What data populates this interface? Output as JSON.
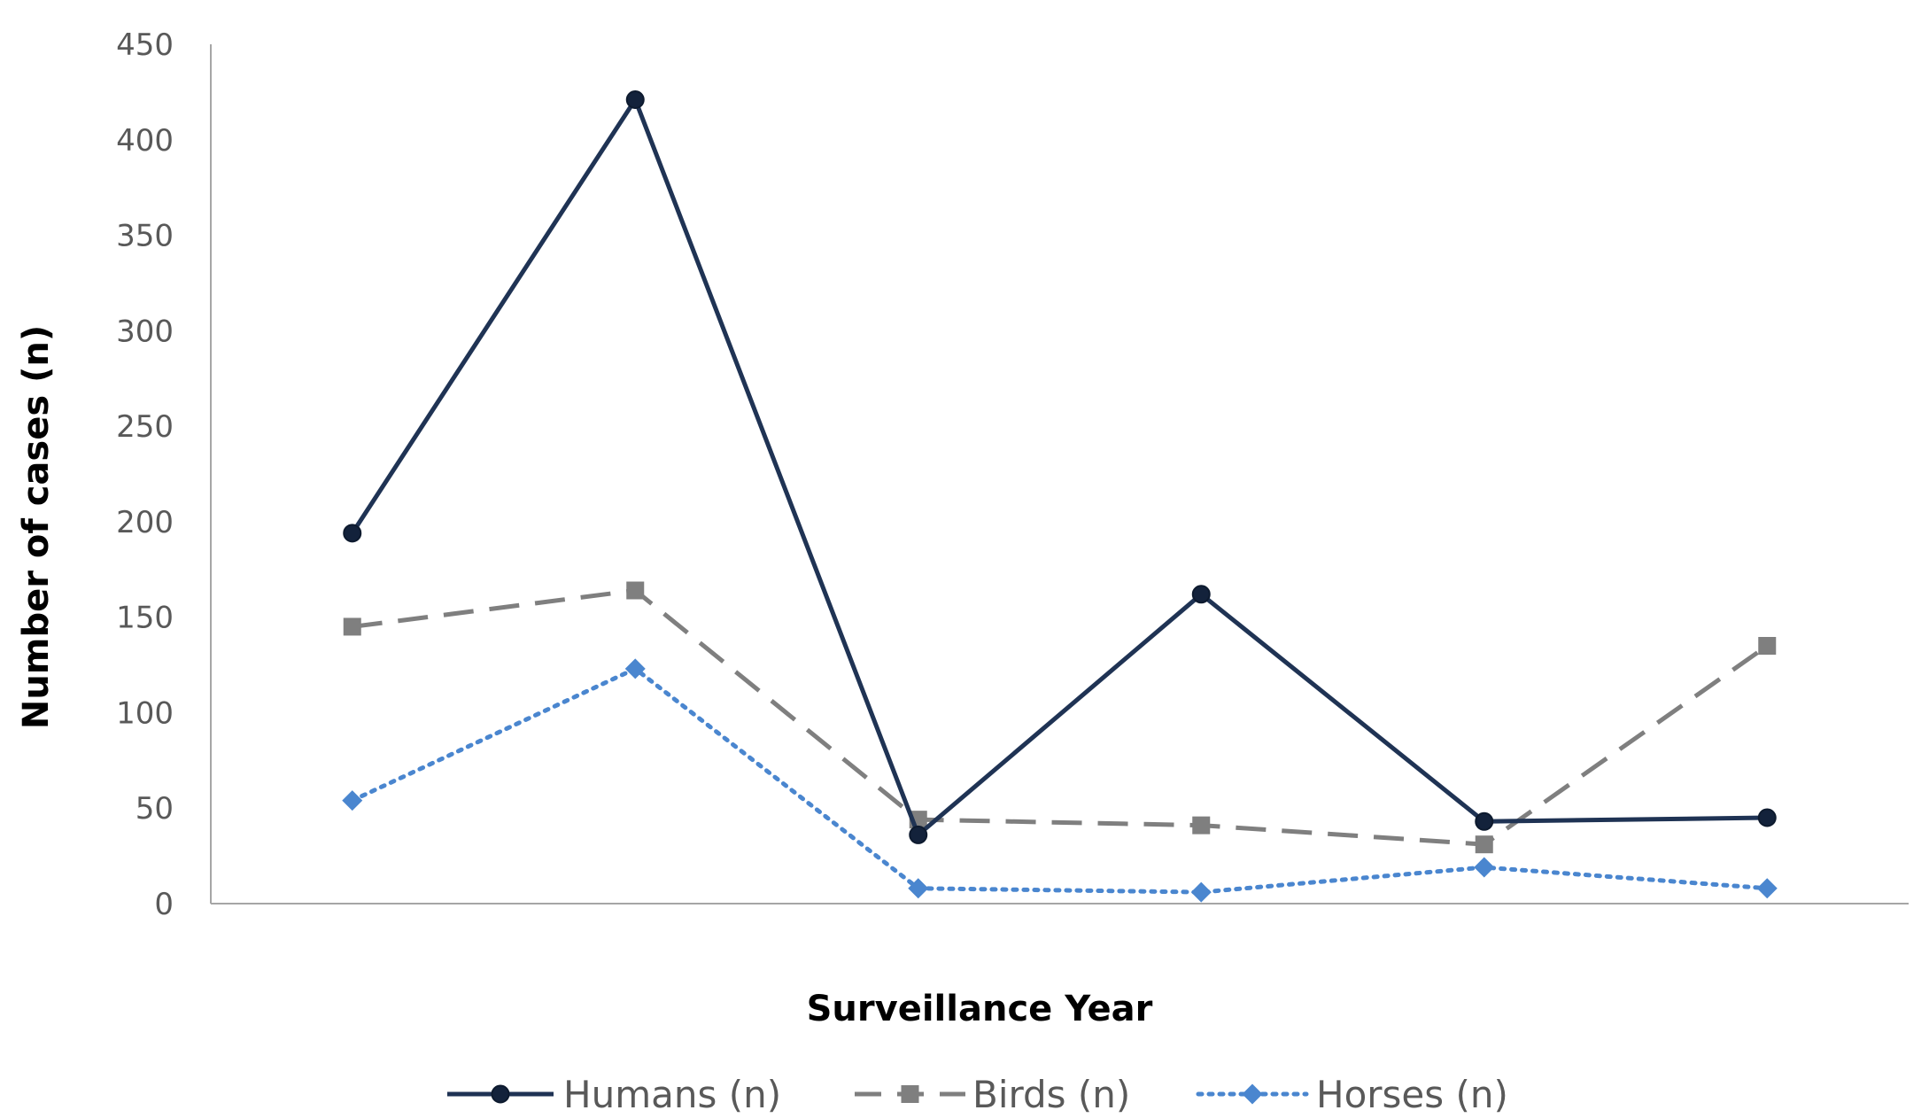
{
  "chart_data": {
    "type": "line",
    "title": "",
    "xlabel": "Surveillance Year",
    "ylabel": "Number of cases (n)",
    "ylim": [
      0,
      450
    ],
    "yticks": [
      0,
      50,
      100,
      150,
      200,
      250,
      300,
      350,
      400,
      450
    ],
    "categories": [
      "",
      "",
      "",
      "",
      "",
      ""
    ],
    "grid": false,
    "legend_position": "bottom",
    "series": [
      {
        "name": "Humans (n)",
        "values": [
          194,
          421,
          36,
          162,
          43,
          45
        ],
        "color": "#1f3354",
        "marker": "circle",
        "dash": "solid"
      },
      {
        "name": "Birds (n)",
        "values": [
          145,
          164,
          44,
          41,
          31,
          135
        ],
        "color": "#7f7f7f",
        "marker": "square",
        "dash": "dashed"
      },
      {
        "name": "Horses (n)",
        "values": [
          54,
          123,
          8,
          6,
          19,
          8
        ],
        "color": "#4a86cf",
        "marker": "diamond",
        "dash": "dotted"
      }
    ]
  }
}
